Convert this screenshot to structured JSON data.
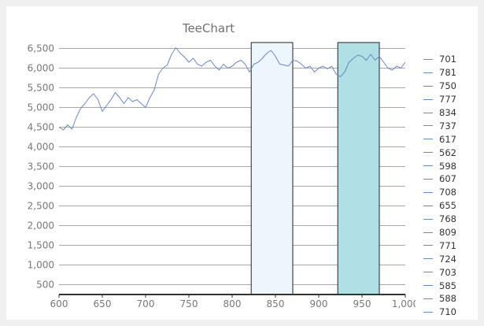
{
  "chart_data": {
    "type": "line",
    "title": "TeeChart",
    "xlim": [
      600,
      1000
    ],
    "ylim": [
      250,
      6650
    ],
    "x_ticks": [
      "600",
      "650",
      "700",
      "750",
      "800",
      "850",
      "900",
      "950",
      "1,000"
    ],
    "y_ticks": [
      "500",
      "1,000",
      "1,500",
      "2,000",
      "2,500",
      "3,000",
      "3,500",
      "4,000",
      "4,500",
      "5,000",
      "5,500",
      "6,000",
      "6,500"
    ],
    "grid": true,
    "legend_position": "right",
    "legend": [
      "701",
      "781",
      "750",
      "777",
      "834",
      "737",
      "617",
      "562",
      "598",
      "607",
      "708",
      "655",
      "768",
      "809",
      "771",
      "724",
      "703",
      "585",
      "588",
      "710"
    ],
    "series": [
      {
        "x": [
          600,
          605,
          610,
          615,
          620,
          625,
          630,
          635,
          640,
          645,
          650,
          655,
          660,
          665,
          670,
          675,
          680,
          685,
          690,
          695,
          700,
          705,
          710,
          715,
          720,
          725,
          730,
          735,
          740,
          745,
          750,
          755,
          760,
          765,
          770,
          775,
          780,
          785,
          790,
          795,
          800,
          805,
          810,
          815,
          820,
          825,
          830,
          835,
          840,
          845,
          850,
          855,
          860,
          865,
          870,
          875,
          880,
          885,
          890,
          895,
          900,
          905,
          910,
          915,
          920,
          925,
          930,
          935,
          940,
          945,
          950,
          955,
          960,
          965,
          970,
          975,
          980,
          985,
          990,
          995,
          1000
        ],
        "y": [
          4500,
          4430,
          4560,
          4450,
          4750,
          4980,
          5100,
          5250,
          5350,
          5200,
          4900,
          5050,
          5200,
          5380,
          5250,
          5100,
          5250,
          5150,
          5200,
          5100,
          5000,
          5250,
          5450,
          5850,
          6000,
          6080,
          6350,
          6520,
          6380,
          6280,
          6150,
          6250,
          6100,
          6050,
          6150,
          6200,
          6050,
          5950,
          6100,
          6000,
          6050,
          6150,
          6200,
          6100,
          5900,
          6100,
          6150,
          6250,
          6380,
          6450,
          6300,
          6100,
          6080,
          6050,
          6200,
          6180,
          6100,
          6000,
          6050,
          5900,
          6000,
          6050,
          5980,
          6050,
          5850,
          5780,
          5900,
          6150,
          6250,
          6330,
          6300,
          6200,
          6350,
          6200,
          6300,
          6150,
          6000,
          5950,
          6050,
          6000,
          6150
        ]
      }
    ],
    "bands": [
      {
        "x_start": 822,
        "x_end": 870,
        "color": "#eef6fd"
      },
      {
        "x_start": 922,
        "x_end": 970,
        "color": "#b0dfe5"
      }
    ],
    "colors": {
      "line": "#6b86c4",
      "grid": "#a8a8a8",
      "axis": "#333333",
      "text": "#777777",
      "title": "#707070"
    }
  }
}
